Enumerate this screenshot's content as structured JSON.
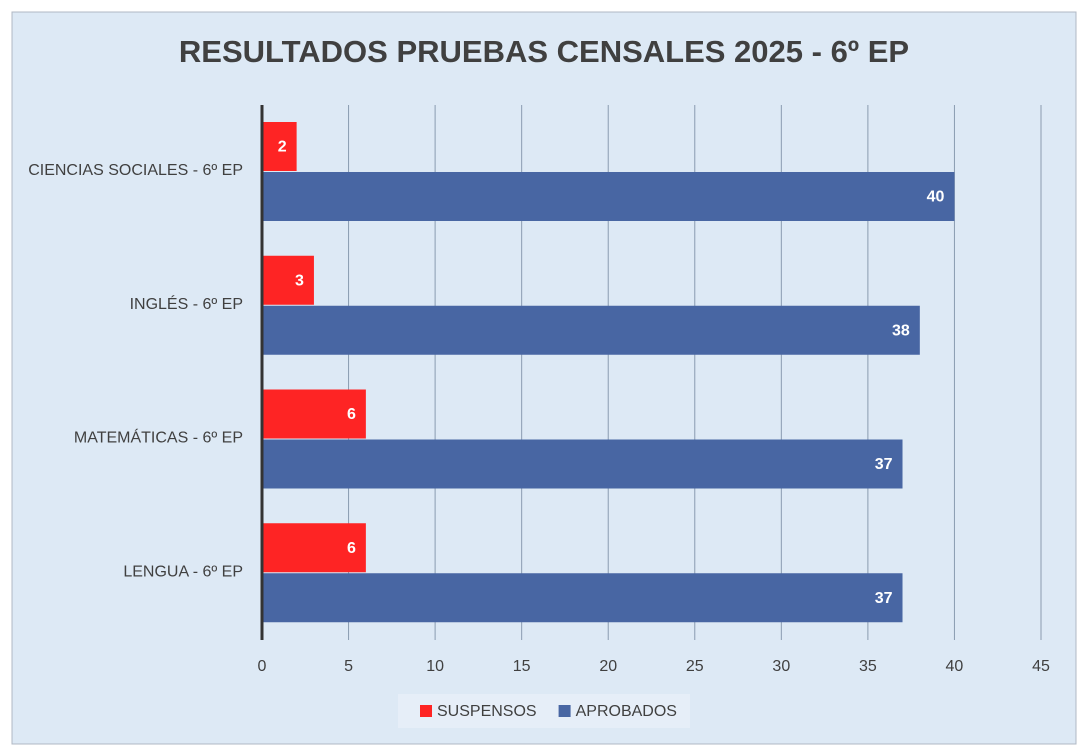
{
  "chart_data": {
    "type": "bar",
    "orientation": "horizontal",
    "title": "RESULTADOS PRUEBAS CENSALES 2025 - 6º EP",
    "categories": [
      "CIENCIAS SOCIALES - 6º EP",
      "INGLÉS - 6º EP",
      "MATEMÁTICAS - 6º EP",
      "LENGUA - 6º EP"
    ],
    "series": [
      {
        "name": "SUSPENSOS",
        "color": "#fe2424",
        "values": [
          2,
          3,
          6,
          6
        ]
      },
      {
        "name": "APROBADOS",
        "color": "#4866a3",
        "values": [
          40,
          38,
          37,
          37
        ]
      }
    ],
    "xlim": [
      0,
      45
    ],
    "xticks": [
      0,
      5,
      10,
      15,
      20,
      25,
      30,
      35,
      40,
      45
    ],
    "grid": true,
    "legend": "bottom"
  }
}
